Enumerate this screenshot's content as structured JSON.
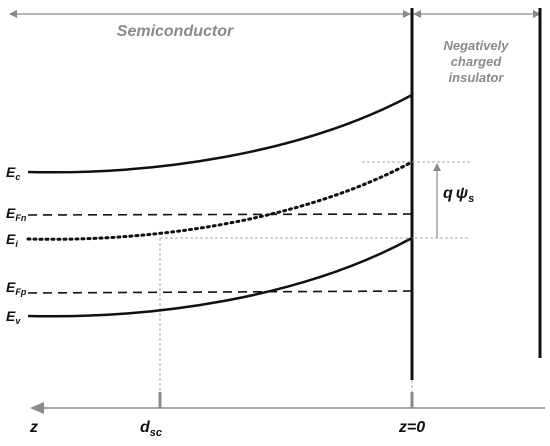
{
  "regions": {
    "semiconductor": "Semiconductor",
    "insulator_line1": "Negatively",
    "insulator_line2": "charged",
    "insulator_line3": "insulator"
  },
  "bands": {
    "ec": {
      "main": "E",
      "sub": "c"
    },
    "efn": {
      "main": "E",
      "sub": "Fn"
    },
    "ei": {
      "main": "E",
      "sub": "i"
    },
    "efp": {
      "main": "E",
      "sub": "Fp"
    },
    "ev": {
      "main": "E",
      "sub": "v"
    }
  },
  "potential": {
    "q": "q",
    "psi": "ψ",
    "sub": "s"
  },
  "axis": {
    "z_label": "z",
    "dsc_main": "d",
    "dsc_sub": "sc",
    "origin_label": "z=0"
  },
  "colors": {
    "line": "#111111",
    "guide": "#aaaaaa",
    "region_text": "#8a8a8a"
  }
}
